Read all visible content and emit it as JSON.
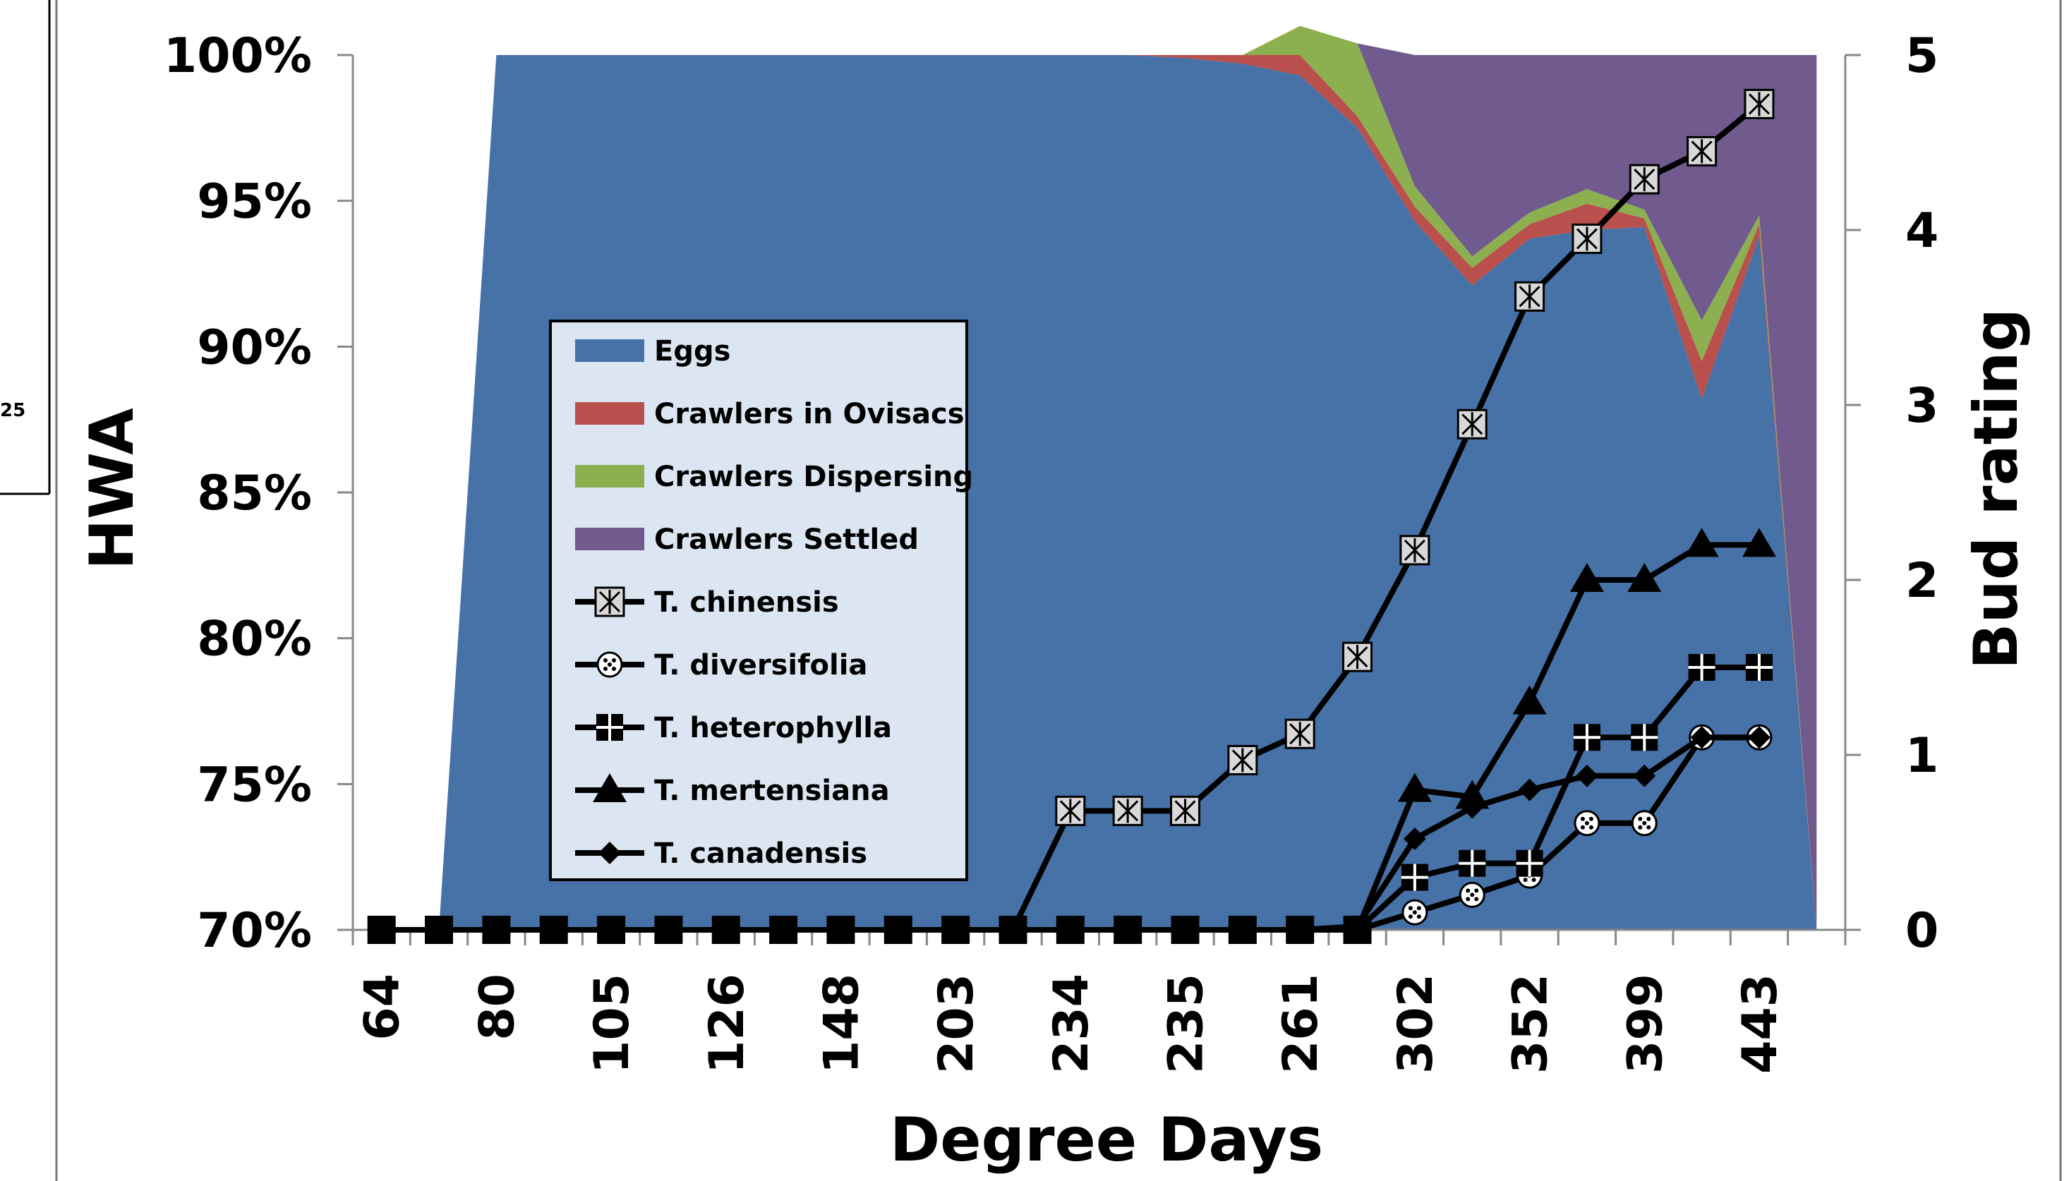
{
  "chart_data": {
    "type": "area+line",
    "title": "",
    "xlabel": "Degree Days",
    "ylabel_left": "HWA",
    "ylabel_right": "Bud rating",
    "x_tick_labels": [
      "64",
      "80",
      "105",
      "126",
      "148",
      "203",
      "234",
      "235",
      "261",
      "302",
      "352",
      "399",
      "443"
    ],
    "left_axis": {
      "ylim": [
        70,
        100
      ],
      "ticks": [
        "70%",
        "75%",
        "80%",
        "85%",
        "90%",
        "95%",
        "100%"
      ],
      "tick_values": [
        70,
        75,
        80,
        85,
        90,
        95,
        100
      ]
    },
    "right_axis": {
      "ylim": [
        0,
        5
      ],
      "ticks": [
        "0",
        "1",
        "2",
        "3",
        "4",
        "5"
      ],
      "tick_values": [
        0,
        1,
        2,
        3,
        4,
        5
      ]
    },
    "num_points": 26,
    "stacked_area_series": [
      {
        "name": "Eggs",
        "color": "#4672A7",
        "values": [
          0,
          0,
          100,
          100,
          100,
          100,
          100,
          100,
          100,
          100,
          100,
          100,
          100,
          100,
          99.9,
          99.7,
          99.3,
          97.5,
          94.3,
          92.1,
          93.7,
          94.0,
          94.1,
          88.2,
          93.8,
          0
        ]
      },
      {
        "name": "Crawlers in Ovisacs",
        "color": "#B9504D",
        "values": [
          0,
          0,
          0,
          0,
          0,
          0,
          0,
          0,
          0,
          0,
          0,
          0,
          0,
          0,
          0.1,
          0.3,
          0.7,
          0.4,
          0.5,
          0.6,
          0.5,
          0.9,
          0.3,
          1.3,
          0.4,
          0
        ]
      },
      {
        "name": "Crawlers Dispersing",
        "color": "#8CB050",
        "values": [
          0,
          0,
          0,
          0,
          0,
          0,
          0,
          0,
          0,
          0,
          0,
          0,
          0,
          0,
          0,
          0,
          1.0,
          2.5,
          0.7,
          0.4,
          0.4,
          0.5,
          0.3,
          1.4,
          0.3,
          0
        ]
      },
      {
        "name": "Crawlers Settled",
        "color": "#705A8E",
        "values": [
          0,
          0,
          0,
          0,
          0,
          0,
          0,
          0,
          0,
          0,
          0,
          0,
          0,
          0,
          0,
          0,
          0,
          0,
          4.5,
          6.9,
          5.4,
          4.6,
          5.3,
          9.1,
          5.5,
          100
        ]
      }
    ],
    "line_series": [
      {
        "name": "T. chinensis",
        "marker": "asterisk-box",
        "values": [
          0,
          0,
          0,
          0,
          0,
          0,
          0,
          0,
          0,
          0,
          0,
          0,
          0.68,
          0.68,
          0.68,
          0.97,
          1.12,
          1.56,
          2.17,
          2.89,
          3.62,
          3.95,
          4.29,
          4.45,
          4.72
        ]
      },
      {
        "name": "T. diversifolia",
        "marker": "dotted-circle",
        "values": [
          0,
          0,
          0,
          0,
          0,
          0,
          0,
          0,
          0,
          0,
          0,
          0,
          0,
          0,
          0,
          0,
          0,
          0,
          0.1,
          0.2,
          0.31,
          0.61,
          0.61,
          1.1,
          1.1
        ]
      },
      {
        "name": "T. heterophylla",
        "marker": "cross-square",
        "values": [
          0,
          0,
          0,
          0,
          0,
          0,
          0,
          0,
          0,
          0,
          0,
          0,
          0,
          0,
          0,
          0,
          0,
          0,
          0.3,
          0.38,
          0.38,
          1.1,
          1.1,
          1.5,
          1.5
        ]
      },
      {
        "name": "T. mertensiana",
        "marker": "triangle",
        "values": [
          0,
          0,
          0,
          0,
          0,
          0,
          0,
          0,
          0,
          0,
          0,
          0,
          0,
          0,
          0,
          0,
          0,
          0,
          0.8,
          0.76,
          1.3,
          2.0,
          2.0,
          2.2,
          2.2
        ]
      },
      {
        "name": "T. canadensis",
        "marker": "diamond",
        "values": [
          0,
          0,
          0,
          0,
          0,
          0,
          0,
          0,
          0,
          0,
          0,
          0,
          0,
          0,
          0,
          0,
          0,
          0.02,
          0.52,
          0.7,
          0.8,
          0.88,
          0.88,
          1.1,
          1.1
        ]
      }
    ],
    "legend": {
      "position": "center-left"
    },
    "grid": false
  },
  "edge_label": "25"
}
